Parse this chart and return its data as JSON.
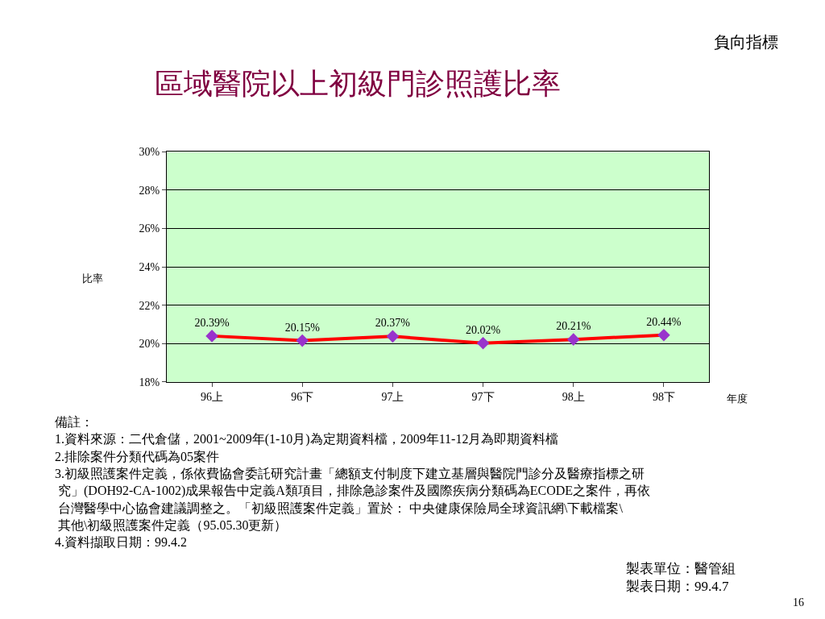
{
  "chart_data": {
    "type": "line",
    "title": "區域醫院以上初級門診照護比率",
    "subtitle": "負向指標",
    "xlabel": "年度",
    "ylabel": "比率",
    "categories": [
      "96上",
      "96下",
      "97上",
      "97下",
      "98上",
      "98下"
    ],
    "series": [
      {
        "color": "#ff0000",
        "values": [
          20.39,
          20.15,
          20.37,
          20.02,
          20.21,
          20.44
        ]
      }
    ],
    "ylim": [
      18,
      30
    ],
    "yticks": [
      {
        "value": 18,
        "label": "18%"
      },
      {
        "value": 20,
        "label": "20%"
      },
      {
        "value": 22,
        "label": "22%"
      },
      {
        "value": 24,
        "label": "24%"
      },
      {
        "value": 26,
        "label": "26%"
      },
      {
        "value": 28,
        "label": "28%"
      },
      {
        "value": 30,
        "label": "30%"
      }
    ],
    "value_labels": [
      "20.39%",
      "20.15%",
      "20.37%",
      "20.02%",
      "20.21%",
      "20.44%"
    ],
    "grid": "y",
    "marker": "diamond",
    "line_style": "solid",
    "annotations": [
      "備註：",
      "1.資料來源：二代倉儲，2001~2009年(1-10月)為定期資料檔，2009年11-12月為即期資料檔",
      "2.排除案件分類代碼為05案件",
      "3.初級照護案件定義，係依費協會委託研究計畫「總額支付制度下建立基層與醫院門診分及醫療指標之研",
      " 究」(DOH92-CA-1002)成果報告中定義A類項目，排除急診案件及國際疾病分類碼為ECODE之案件，再依",
      " 台灣醫學中心協會建議調整之。「初級照護案件定義」置於： 中央健康保險局全球資訊網\\下載檔案\\",
      " 其他\\初級照護案件定義（95.05.30更新）",
      "4.資料擷取日期：99.4.2",
      "製表單位：醫管組",
      "製表日期：99.4.7",
      "16"
    ]
  }
}
